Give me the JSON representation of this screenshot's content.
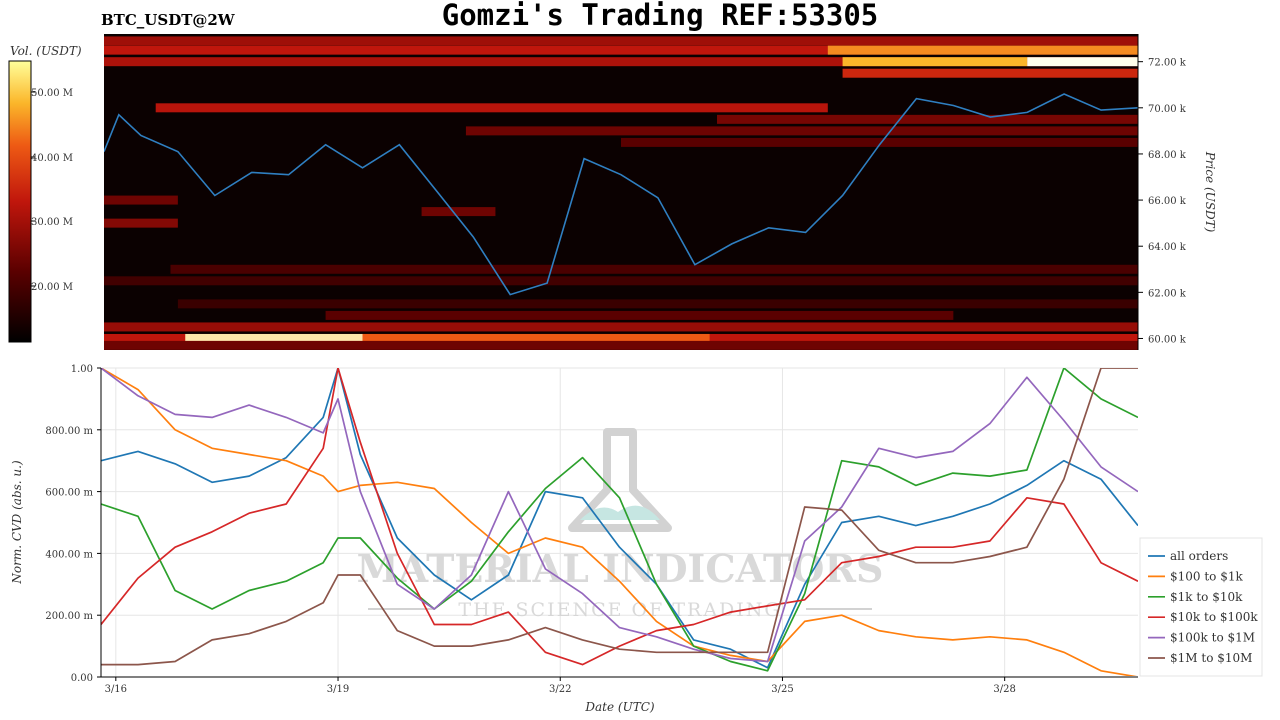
{
  "header": {
    "ticker": "BTC_USDT@2W",
    "title": "Gomzi's Trading REF:53305"
  },
  "colorbar": {
    "label": "Vol. (USDT)",
    "ticks": [
      "50.00 M",
      "40.00 M",
      "30.00 M",
      "20.00 M"
    ]
  },
  "watermark": {
    "line1": "MATERIAL INDICATORS",
    "line2": "THE SCIENCE OF TRADING"
  },
  "colors": {
    "all_orders": "#1f77b4",
    "usd100_1k": "#ff7f0e",
    "usd1k_10k": "#2ca02c",
    "usd10k_100k": "#d62728",
    "usd100k_1m": "#9467bd",
    "usd1m_10m": "#8c564b",
    "heatmap_bg": "#0b0101",
    "price_line": "#2f7fc1"
  },
  "chart_data": [
    {
      "type": "heatmap",
      "title": "",
      "ylabel": "Price (USDT)",
      "yticks": [
        "72.00 k",
        "70.00 k",
        "68.00 k",
        "66.00 k",
        "64.00 k",
        "62.00 k",
        "60.00 k"
      ],
      "ylim": [
        59.5,
        73.2
      ],
      "xlim": [
        0,
        14
      ],
      "price_series": {
        "name": "",
        "t": [
          0,
          0.2,
          0.5,
          1,
          1.5,
          2,
          2.5,
          3,
          3.5,
          4,
          4.5,
          5,
          5.5,
          6,
          6.5,
          7,
          7.5,
          8,
          8.5,
          9,
          9.5,
          10,
          10.5,
          11,
          11.5,
          12,
          12.5,
          13,
          13.5,
          14
        ],
        "price": [
          68.1,
          69.7,
          68.8,
          68.1,
          66.2,
          67.2,
          67.1,
          68.4,
          67.4,
          68.4,
          66.4,
          64.4,
          61.9,
          62.4,
          67.8,
          67.1,
          66.1,
          63.2,
          64.1,
          64.8,
          64.6,
          66.2,
          68.4,
          70.4,
          70.1,
          69.6,
          69.8,
          70.6,
          69.9,
          70.0
        ]
      },
      "bands": [
        {
          "price": 72.9,
          "t0": 0.0,
          "t1": 14.0,
          "level": 0.42
        },
        {
          "price": 72.5,
          "t0": 0.0,
          "t1": 14.0,
          "level": 0.5
        },
        {
          "price": 72.5,
          "t0": 9.8,
          "t1": 14.0,
          "level": 0.78
        },
        {
          "price": 72.0,
          "t0": 0.0,
          "t1": 14.0,
          "level": 0.45
        },
        {
          "price": 72.0,
          "t0": 10.0,
          "t1": 12.5,
          "level": 0.85
        },
        {
          "price": 72.0,
          "t0": 12.5,
          "t1": 14.0,
          "level": 1.0
        },
        {
          "price": 71.5,
          "t0": 10.0,
          "t1": 14.0,
          "level": 0.55
        },
        {
          "price": 70.0,
          "t0": 0.7,
          "t1": 9.8,
          "level": 0.48
        },
        {
          "price": 69.5,
          "t0": 8.3,
          "t1": 14.0,
          "level": 0.32
        },
        {
          "price": 69.0,
          "t0": 4.9,
          "t1": 14.0,
          "level": 0.3
        },
        {
          "price": 68.5,
          "t0": 7.0,
          "t1": 14.0,
          "level": 0.25
        },
        {
          "price": 66.0,
          "t0": 0.0,
          "t1": 1.0,
          "level": 0.3
        },
        {
          "price": 65.5,
          "t0": 4.3,
          "t1": 5.3,
          "level": 0.3
        },
        {
          "price": 65.0,
          "t0": 0.0,
          "t1": 1.0,
          "level": 0.35
        },
        {
          "price": 63.0,
          "t0": 0.9,
          "t1": 14.0,
          "level": 0.2
        },
        {
          "price": 62.5,
          "t0": 0.0,
          "t1": 14.0,
          "level": 0.17
        },
        {
          "price": 61.5,
          "t0": 1.0,
          "t1": 14.0,
          "level": 0.15
        },
        {
          "price": 61.0,
          "t0": 3.0,
          "t1": 11.5,
          "level": 0.25
        },
        {
          "price": 60.5,
          "t0": 0.0,
          "t1": 14.0,
          "level": 0.4
        },
        {
          "price": 60.0,
          "t0": 0.0,
          "t1": 14.0,
          "level": 0.5
        },
        {
          "price": 60.0,
          "t0": 1.1,
          "t1": 3.5,
          "level": 0.95
        },
        {
          "price": 60.0,
          "t0": 3.5,
          "t1": 8.2,
          "level": 0.7
        },
        {
          "price": 59.7,
          "t0": 0.0,
          "t1": 14.0,
          "level": 0.3
        }
      ]
    },
    {
      "type": "line",
      "title": "",
      "xlabel": "Date (UTC)",
      "ylabel": "Norm. CVD (abs. u.)",
      "ylim": [
        0,
        1.0
      ],
      "yticks": [
        "0.00",
        "200.00 m",
        "400.00 m",
        "600.00 m",
        "800.00 m",
        "1.00"
      ],
      "xticks": [
        {
          "t": 0.2,
          "label": "3/16"
        },
        {
          "t": 3.2,
          "label": "3/19"
        },
        {
          "t": 6.2,
          "label": "3/22"
        },
        {
          "t": 9.2,
          "label": "3/25"
        },
        {
          "t": 12.2,
          "label": "3/28"
        }
      ],
      "xlim": [
        0,
        14
      ],
      "x": [
        0,
        0.5,
        1,
        1.5,
        2,
        2.5,
        3,
        3.2,
        3.5,
        4,
        4.5,
        5,
        5.5,
        6,
        6.5,
        7,
        7.5,
        8,
        8.5,
        9,
        9.5,
        10,
        10.5,
        11,
        11.5,
        12,
        12.5,
        13,
        13.5,
        14
      ],
      "series": [
        {
          "name": "all orders",
          "key": "all_orders",
          "values": [
            0.7,
            0.73,
            0.69,
            0.63,
            0.65,
            0.71,
            0.84,
            1.0,
            0.72,
            0.45,
            0.33,
            0.25,
            0.33,
            0.6,
            0.58,
            0.42,
            0.3,
            0.12,
            0.09,
            0.03,
            0.3,
            0.5,
            0.52,
            0.49,
            0.52,
            0.56,
            0.62,
            0.7,
            0.64,
            0.49
          ]
        },
        {
          "name": "$100 to $1k",
          "key": "usd100_1k",
          "values": [
            1.0,
            0.93,
            0.8,
            0.74,
            0.72,
            0.7,
            0.65,
            0.6,
            0.62,
            0.63,
            0.61,
            0.5,
            0.4,
            0.45,
            0.42,
            0.31,
            0.18,
            0.1,
            0.07,
            0.05,
            0.18,
            0.2,
            0.15,
            0.13,
            0.12,
            0.13,
            0.12,
            0.08,
            0.02,
            0.0
          ]
        },
        {
          "name": "$1k to $10k",
          "key": "usd1k_10k",
          "values": [
            0.56,
            0.52,
            0.28,
            0.22,
            0.28,
            0.31,
            0.37,
            0.45,
            0.45,
            0.32,
            0.22,
            0.31,
            0.47,
            0.61,
            0.71,
            0.58,
            0.3,
            0.1,
            0.05,
            0.02,
            0.27,
            0.7,
            0.68,
            0.62,
            0.66,
            0.65,
            0.67,
            1.0,
            0.9,
            0.84
          ]
        },
        {
          "name": "$10k to $100k",
          "key": "usd10k_100k",
          "values": [
            0.17,
            0.32,
            0.42,
            0.47,
            0.53,
            0.56,
            0.74,
            1.0,
            0.76,
            0.4,
            0.17,
            0.17,
            0.21,
            0.08,
            0.04,
            0.1,
            0.15,
            0.17,
            0.21,
            0.23,
            0.25,
            0.37,
            0.39,
            0.42,
            0.42,
            0.44,
            0.58,
            0.56,
            0.37,
            0.31
          ]
        },
        {
          "name": "$100k to $1M",
          "key": "usd100k_1m",
          "values": [
            1.0,
            0.91,
            0.85,
            0.84,
            0.88,
            0.84,
            0.79,
            0.9,
            0.6,
            0.3,
            0.22,
            0.33,
            0.6,
            0.35,
            0.27,
            0.16,
            0.13,
            0.09,
            0.06,
            0.05,
            0.44,
            0.55,
            0.74,
            0.71,
            0.73,
            0.82,
            0.97,
            0.83,
            0.68,
            0.6
          ]
        },
        {
          "name": "$1M to $10M",
          "key": "usd1m_10m",
          "values": [
            0.04,
            0.04,
            0.05,
            0.12,
            0.14,
            0.18,
            0.24,
            0.33,
            0.33,
            0.15,
            0.1,
            0.1,
            0.12,
            0.16,
            0.12,
            0.09,
            0.08,
            0.08,
            0.08,
            0.08,
            0.55,
            0.54,
            0.41,
            0.37,
            0.37,
            0.39,
            0.42,
            0.64,
            1.0,
            1.0
          ]
        }
      ]
    }
  ]
}
